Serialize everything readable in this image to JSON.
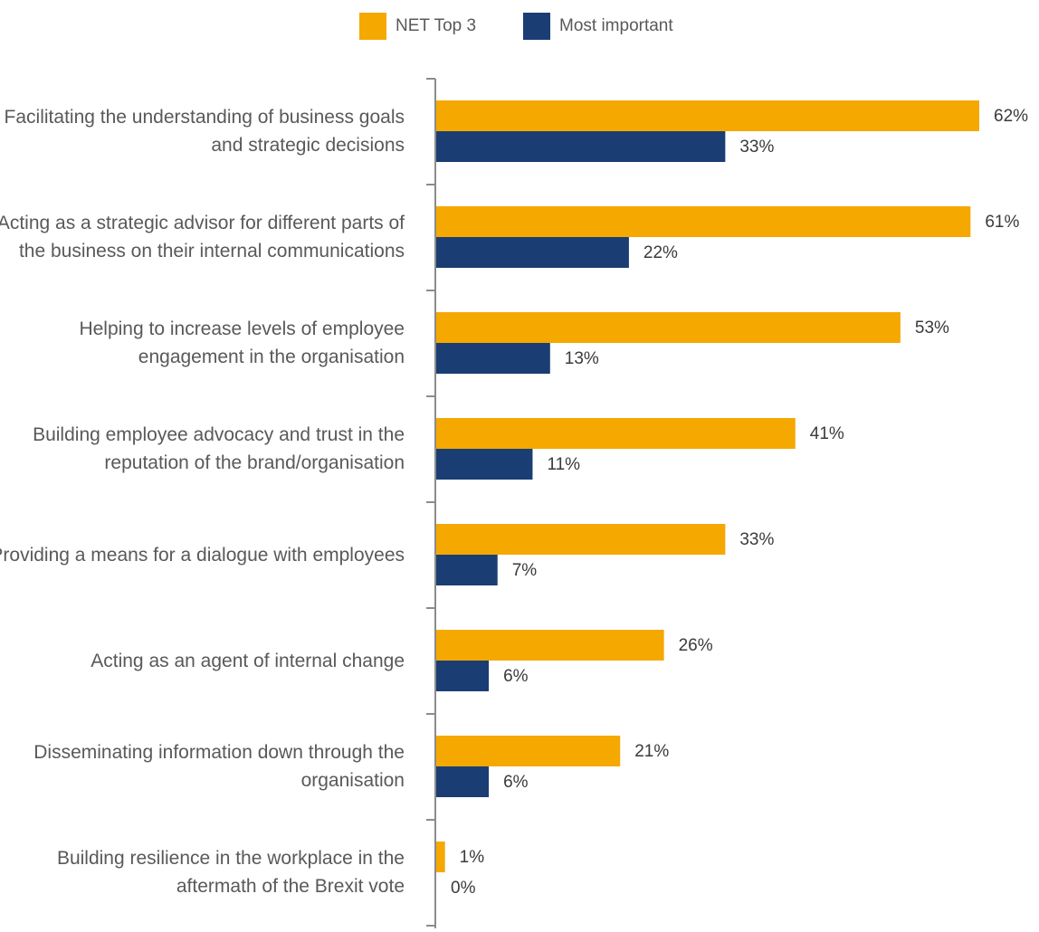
{
  "chart_data": {
    "type": "bar",
    "orientation": "horizontal",
    "title": "",
    "xlabel": "",
    "ylabel": "",
    "xlim": [
      0,
      62
    ],
    "grid": false,
    "legend_position": "top-center",
    "categories": [
      "Facilitating the understanding of business goals and strategic decisions",
      "Acting as a strategic advisor for different parts of the business on their internal communications",
      "Helping to increase levels of employee engagement in the organisation",
      "Building employee advocacy and trust in the reputation of the brand/organisation",
      "Providing a means for a dialogue with employees",
      "Acting as an agent of internal change",
      "Disseminating information down through the organisation",
      "Building resilience in the workplace in the aftermath of the Brexit vote"
    ],
    "series": [
      {
        "name": "NET Top 3",
        "color": "#f5a800",
        "values": [
          62,
          61,
          53,
          41,
          33,
          26,
          21,
          1
        ],
        "labels": [
          "62%",
          "61%",
          "53%",
          "41%",
          "33%",
          "26%",
          "21%",
          "1%"
        ]
      },
      {
        "name": "Most important",
        "color": "#1a3e73",
        "values": [
          33,
          22,
          13,
          11,
          7,
          6,
          6,
          0
        ],
        "labels": [
          "33%",
          "22%",
          "13%",
          "11%",
          "7%",
          "6%",
          "6%",
          "0%"
        ]
      }
    ]
  },
  "colors": {
    "axis": "#8c8c8c",
    "category_text": "#58595b",
    "value_text": "#3a3a3a"
  }
}
